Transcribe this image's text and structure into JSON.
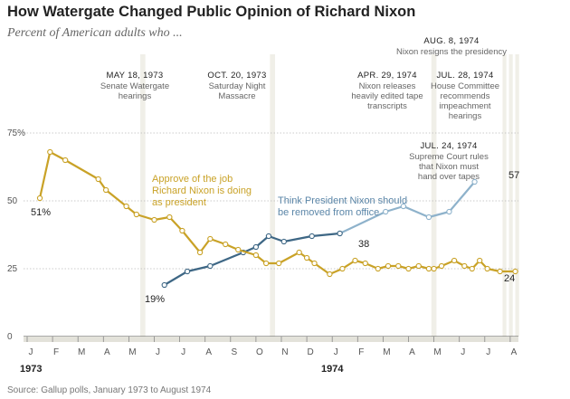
{
  "chart_data": {
    "type": "line",
    "title": "How Watergate Changed Public Opinion of Richard Nixon",
    "subtitle": "Percent of American adults who ...",
    "source": "Source: Gallup polls, January 1973 to August 1974",
    "x_ticks": [
      "J",
      "F",
      "M",
      "A",
      "M",
      "J",
      "J",
      "A",
      "S",
      "O",
      "N",
      "D",
      "J",
      "F",
      "M",
      "A",
      "M",
      "J",
      "J",
      "A"
    ],
    "years": [
      "1973",
      "1974"
    ],
    "y_ticks": [
      "0",
      "25",
      "50",
      "75%"
    ],
    "ylim": [
      0,
      80
    ],
    "series": [
      {
        "key": "approve",
        "name": "Approve of the job Richard Nixon is doing as president",
        "label_lines": [
          "Approve of the job",
          "Richard Nixon is doing",
          "as president"
        ],
        "color": "#c9a227",
        "points": [
          [
            0.5,
            51
          ],
          [
            0.9,
            68
          ],
          [
            1.5,
            65
          ],
          [
            2.8,
            58
          ],
          [
            3.1,
            54
          ],
          [
            3.9,
            48
          ],
          [
            4.3,
            45
          ],
          [
            5.0,
            43
          ],
          [
            5.6,
            44
          ],
          [
            6.1,
            39
          ],
          [
            6.8,
            31
          ],
          [
            7.2,
            36
          ],
          [
            7.8,
            34
          ],
          [
            8.3,
            32
          ],
          [
            9.0,
            30
          ],
          [
            9.4,
            27
          ],
          [
            9.9,
            27
          ],
          [
            10.7,
            31
          ],
          [
            11.0,
            29
          ],
          [
            11.3,
            27
          ],
          [
            11.9,
            23
          ],
          [
            12.4,
            25
          ],
          [
            12.9,
            28
          ],
          [
            13.3,
            27
          ],
          [
            13.8,
            25
          ],
          [
            14.2,
            26
          ],
          [
            14.6,
            26
          ],
          [
            15.0,
            25
          ],
          [
            15.4,
            26
          ],
          [
            15.8,
            25
          ],
          [
            16.0,
            25
          ],
          [
            16.3,
            26
          ],
          [
            16.8,
            28
          ],
          [
            17.2,
            26
          ],
          [
            17.5,
            25
          ],
          [
            17.8,
            28
          ],
          [
            18.1,
            25
          ],
          [
            18.6,
            24
          ],
          [
            19.2,
            24
          ]
        ],
        "start_label": "51%",
        "end_label": "24"
      },
      {
        "key": "remove",
        "name": "Think President Nixon should be removed from office",
        "label_lines": [
          "Think President Nixon should",
          "be removed from office"
        ],
        "color": "#5b86a8",
        "points_dark": [
          [
            5.4,
            19
          ],
          [
            6.3,
            24
          ],
          [
            7.2,
            26
          ],
          [
            8.5,
            31
          ],
          [
            9.0,
            33
          ],
          [
            9.5,
            37
          ],
          [
            10.1,
            35
          ],
          [
            11.2,
            37
          ],
          [
            12.3,
            38
          ]
        ],
        "points_light": [
          [
            12.3,
            38
          ],
          [
            14.1,
            46
          ],
          [
            14.8,
            48
          ],
          [
            15.8,
            44
          ],
          [
            16.6,
            46
          ],
          [
            17.6,
            57
          ]
        ],
        "start_label": "19%",
        "mid_label": "38",
        "end_label": "57"
      }
    ],
    "annotations": [
      {
        "date": "MAY 18, 1973",
        "text": [
          "Senate Watergate",
          "hearings"
        ],
        "x": 4.5
      },
      {
        "date": "OCT. 20, 1973",
        "text": [
          "Saturday Night",
          "Massacre"
        ],
        "x": 9.6
      },
      {
        "date": "APR. 29, 1974",
        "text": [
          "Nixon releases",
          "heavily edited tape",
          "transcripts"
        ],
        "x": 15.95
      },
      {
        "date": "JUL. 28, 1974",
        "text": [
          "House Committee",
          "recommends",
          "impeachment",
          "hearings"
        ],
        "x": 18.9
      },
      {
        "date": "JUL. 24, 1974",
        "text": [
          "Supreme Court rules",
          "that Nixon must",
          "hand over tapes"
        ],
        "x": 18.75
      },
      {
        "date": "AUG. 8, 1974",
        "text": [
          "Nixon resigns the presidency"
        ],
        "x": 19.25
      }
    ]
  }
}
